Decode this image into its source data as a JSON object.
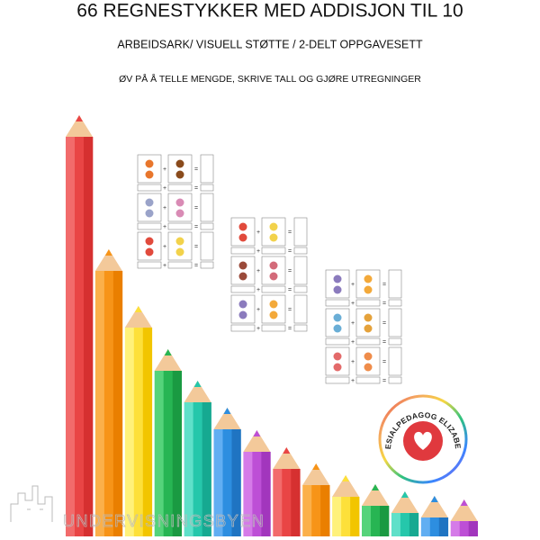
{
  "header": {
    "title": "66 REGNESTYKKER MED ADDISJON TIL 10",
    "subtitle": "ARBEIDSARK/ VISUELL STØTTE / 2-DELT OPPGAVESETT",
    "tagline": "ØV PÅ Å TELLE MENGDE, SKRIVE TALL OG GJØRE UTREGNINGER"
  },
  "worksheet_symbols": {
    "plus": "+",
    "equals": "="
  },
  "badge": {
    "text": "SPESIALPEDAGOG ELIZABETH"
  },
  "watermark": {
    "text": "UNDERVISNINGSBYEN"
  }
}
